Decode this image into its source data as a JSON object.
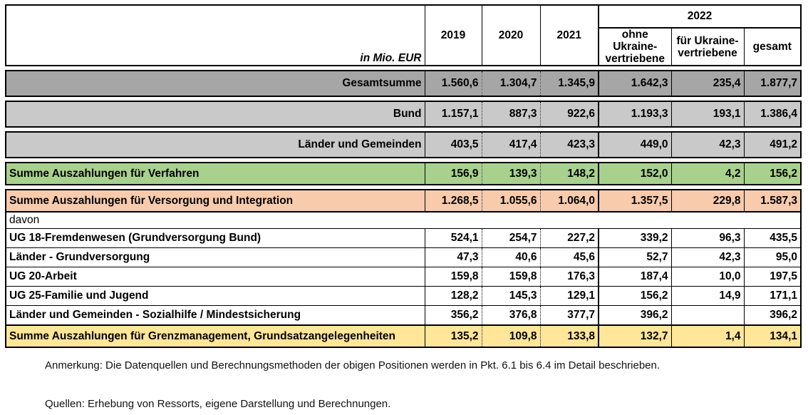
{
  "header": {
    "unit_label": "in Mio. EUR",
    "years": [
      "2019",
      "2020",
      "2021"
    ],
    "year_2022": "2022",
    "sub_2022": [
      "ohne Ukraine-\nvertriebene",
      "für Ukraine-\nvertriebene",
      "gesamt"
    ]
  },
  "rows": {
    "gesamtsumme": {
      "label": "Gesamtsumme",
      "values": [
        "1.560,6",
        "1.304,7",
        "1.345,9",
        "1.642,3",
        "235,4",
        "1.877,7"
      ]
    },
    "bund": {
      "label": "Bund",
      "values": [
        "1.157,1",
        "887,3",
        "922,6",
        "1.193,3",
        "193,1",
        "1.386,4"
      ]
    },
    "laender": {
      "label": "Länder und Gemeinden",
      "values": [
        "403,5",
        "417,4",
        "423,3",
        "449,0",
        "42,3",
        "491,2"
      ]
    },
    "verfahren": {
      "label": "Summe Auszahlungen für Verfahren",
      "values": [
        "156,9",
        "139,3",
        "148,2",
        "152,0",
        "4,2",
        "156,2"
      ]
    },
    "versorgung": {
      "label": "Summe Auszahlungen für Versorgung und Integration",
      "values": [
        "1.268,5",
        "1.055,6",
        "1.064,0",
        "1.357,5",
        "229,8",
        "1.587,3"
      ]
    },
    "davon": {
      "label": "davon"
    },
    "ug18": {
      "label": "UG 18-Fremdenwesen (Grundversorgung Bund)",
      "values": [
        "524,1",
        "254,7",
        "227,2",
        "339,2",
        "96,3",
        "435,5"
      ]
    },
    "laender_gv": {
      "label": "Länder - Grundversorgung",
      "values": [
        "47,3",
        "40,6",
        "45,6",
        "52,7",
        "42,3",
        "95,0"
      ]
    },
    "ug20": {
      "label": "UG 20-Arbeit",
      "values": [
        "159,8",
        "159,8",
        "176,3",
        "187,4",
        "10,0",
        "197,5"
      ]
    },
    "ug25": {
      "label": "UG 25-Familie und Jugend",
      "values": [
        "128,2",
        "145,3",
        "129,1",
        "156,2",
        "14,9",
        "171,1"
      ]
    },
    "sozialhilfe": {
      "label": "Länder und Gemeinden - Sozialhilfe / Mindestsicherung",
      "values": [
        "356,2",
        "376,8",
        "377,7",
        "396,2",
        "",
        "396,2"
      ]
    },
    "grenz": {
      "label": "Summe Auszahlungen für Grenzmanagement, Grundsatzangelegenheiten",
      "values": [
        "135,2",
        "109,8",
        "133,8",
        "132,7",
        "1,4",
        "134,1"
      ]
    }
  },
  "notes": {
    "anmerkung": "Anmerkung: Die Datenquellen und Berechnungsmethoden der obigen Positionen werden in Pkt. 6.1 bis 6.4 im Detail beschrieben.",
    "quellen": "Quellen: Erhebung von Ressorts, eigene Darstellung und Berechnungen."
  }
}
